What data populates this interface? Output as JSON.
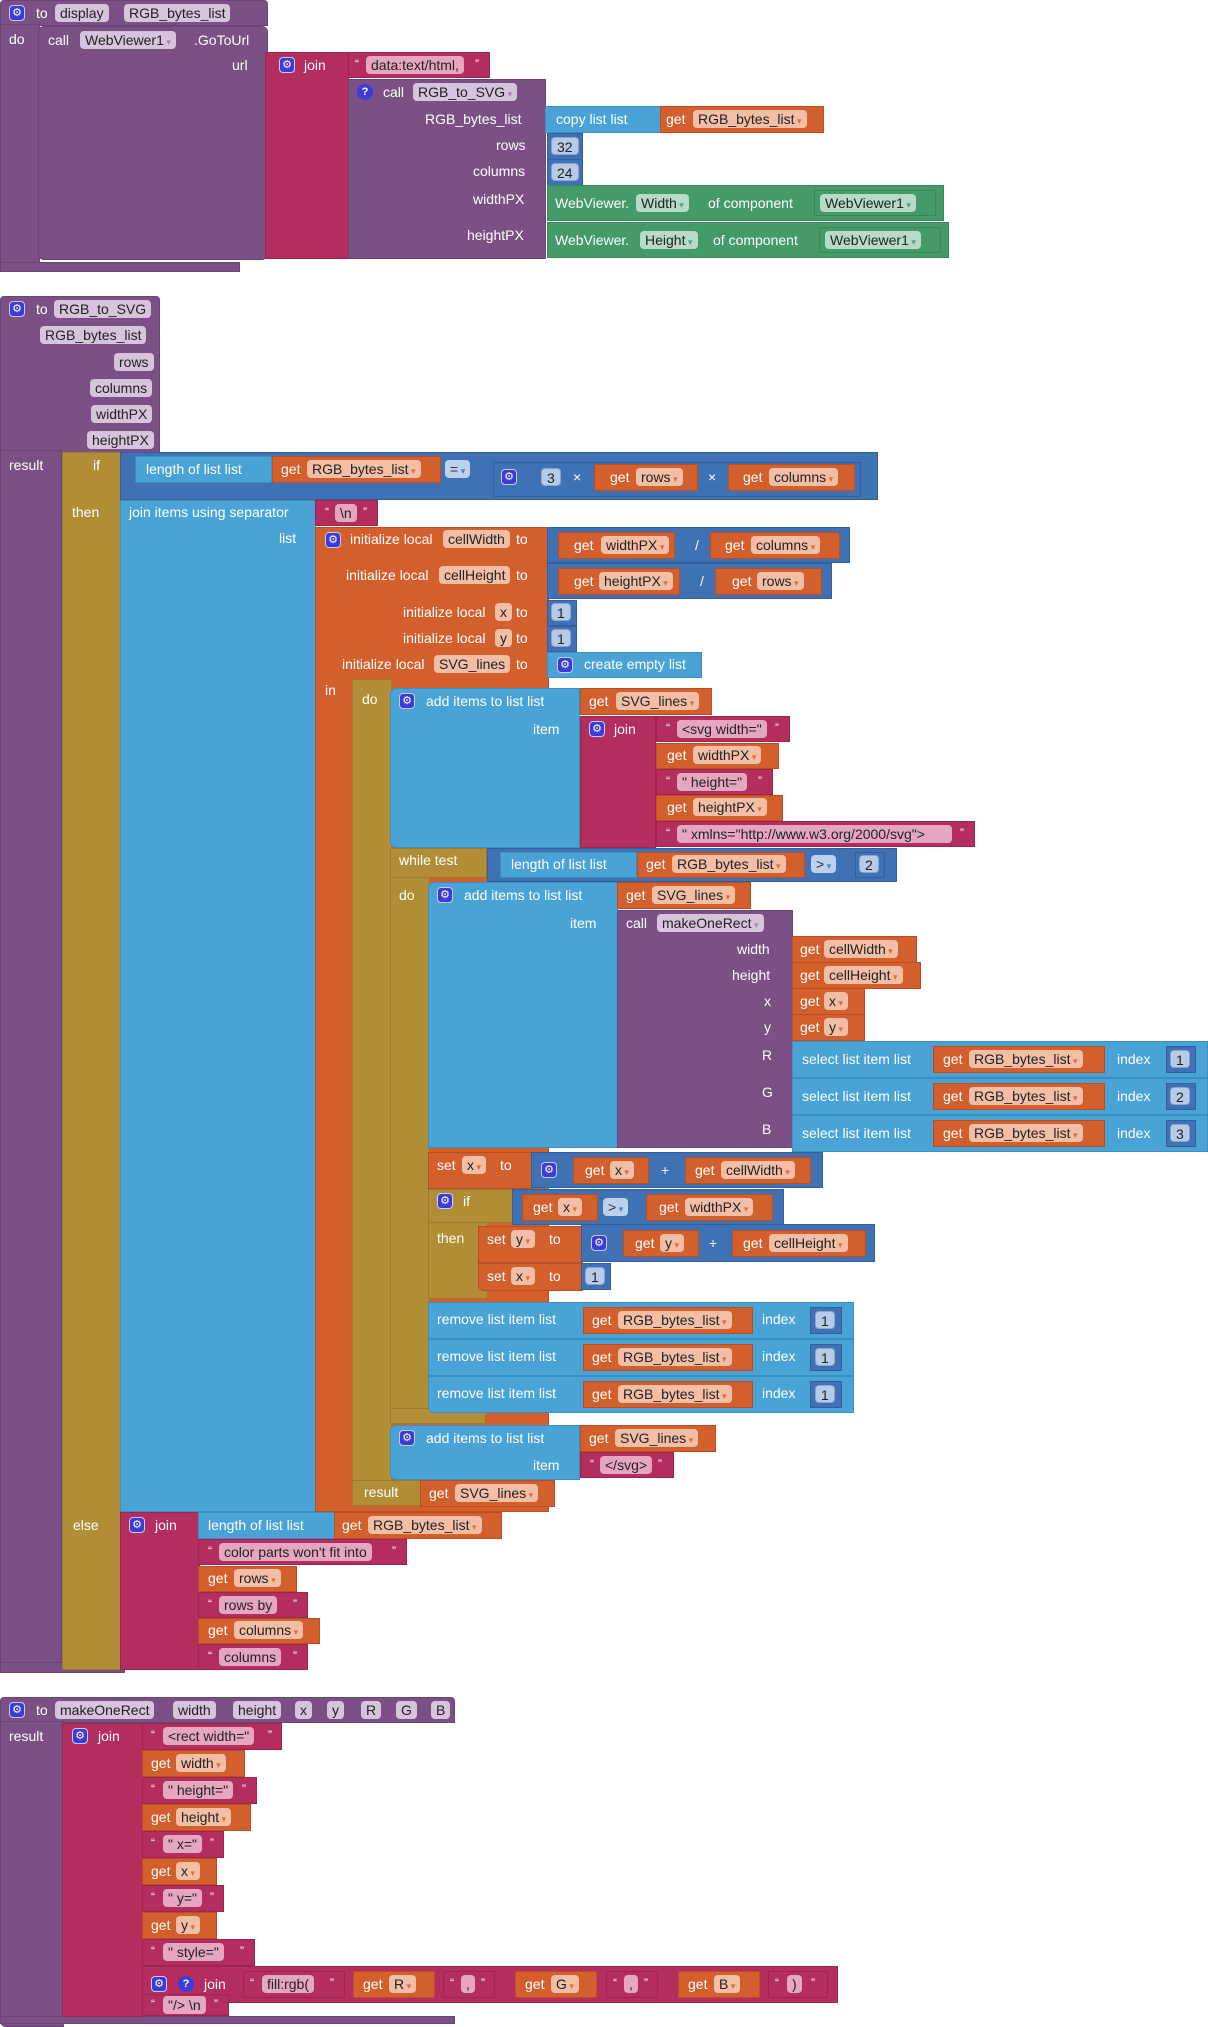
{
  "colors": {
    "procedure": "#7b5185",
    "text": "#b32d5e",
    "variable": "#d35f2c",
    "list": "#4aa3d6",
    "math": "#3f71b5",
    "control": "#b18e35",
    "component": "#459a6a"
  },
  "icons": {
    "mutator": "gear-icon",
    "help": "question-icon",
    "dropdown": "chevron-down-icon"
  },
  "display_proc": {
    "to": "to",
    "name": "display",
    "param": "RGB_bytes_list",
    "do": "do",
    "call": "call",
    "component": "WebViewer1",
    "method": ".GoToUrl",
    "url": "url",
    "join": "join",
    "data_prefix": "data:text/html,",
    "call2": "call",
    "proc": "RGB_to_SVG",
    "arg_rgb": "RGB_bytes_list",
    "copy_list": "copy list  list",
    "get": "get",
    "rgb_var": "RGB_bytes_list",
    "arg_rows": "rows",
    "rows_val": "32",
    "arg_columns": "columns",
    "columns_val": "24",
    "arg_width": "widthPX",
    "wv_prefix": "WebViewer.",
    "width_prop": "Width",
    "of_component": "of component",
    "wv1": "WebViewer1",
    "arg_height": "heightPX",
    "height_prop": "Height"
  },
  "rgb_to_svg": {
    "to": "to",
    "name": "RGB_to_SVG",
    "params": [
      "RGB_bytes_list",
      "rows",
      "columns",
      "widthPX",
      "heightPX"
    ],
    "result": "result",
    "if": "if",
    "then": "then",
    "else": "else",
    "length_of_list": "length of list  list",
    "get": "get",
    "rgb_var": "RGB_bytes_list",
    "eq": "=",
    "three": "3",
    "times": "×",
    "rows": "rows",
    "columns": "columns",
    "join_sep": "join items using separator",
    "sep": "\\n",
    "list": "list",
    "init_local": "initialize local",
    "to_kw": "to",
    "cellWidth": "cellWidth",
    "cellHeight": "cellHeight",
    "x": "x",
    "y": "y",
    "SVG_lines": "SVG_lines",
    "widthPX": "widthPX",
    "heightPX": "heightPX",
    "div": "/",
    "one": "1",
    "create_empty": "create empty list",
    "in": "in",
    "do": "do",
    "add_items": "add items to list   list",
    "add_items2": "add items to list   list",
    "item": "item",
    "join": "join",
    "svg_open": "<svg width=\"",
    "height_attr": "\" height=\"",
    "xmlns": "\" xmlns=\"http://www.w3.org/2000/svg\">",
    "while_test": "while  test",
    "gt": ">",
    "two": "2",
    "call": "call",
    "makeOneRect": "makeOneRect",
    "arg_width": "width",
    "arg_height": "height",
    "arg_x": "x",
    "arg_y": "y",
    "arg_R": "R",
    "arg_G": "G",
    "arg_B": "B",
    "select": "select list item  list",
    "index": "index",
    "i1": "1",
    "i2": "2",
    "i3": "3",
    "set": "set",
    "plus": "+",
    "remove": "remove list item  list",
    "svg_close": "</svg>",
    "color_parts": "color parts won't fit into",
    "rows_by": "rows by",
    "columns_str": "columns"
  },
  "make_one_rect": {
    "to": "to",
    "name": "makeOneRect",
    "params": [
      "width",
      "height",
      "x",
      "y",
      "R",
      "G",
      "B"
    ],
    "result": "result",
    "join": "join",
    "get": "get",
    "s_rect": "<rect width=\"",
    "v_width": "width",
    "s_height": "\" height=\"",
    "v_height": "height",
    "s_x": "\" x=\"",
    "v_x": "x",
    "s_y": "\" y=\"",
    "v_y": "y",
    "s_style": "\"  style=\"",
    "s_fill": "fill:rgb(",
    "v_R": "R",
    "comma1": ",",
    "v_G": "G",
    "comma2": ",",
    "v_B": "B",
    "s_paren": ")",
    "s_end": "\"/> \\n"
  }
}
